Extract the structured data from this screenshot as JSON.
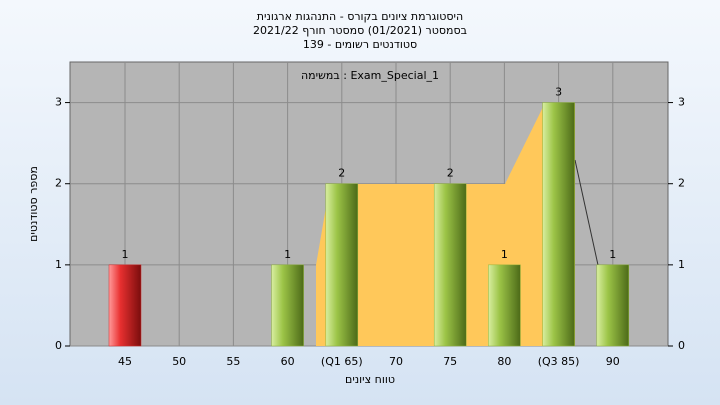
{
  "chart_data": {
    "type": "bar",
    "title": [
      "היסטוגרמת ציונים בקורס - התנהגות ארגונית",
      "בסמסטר  (01/2021)  סמסטר חורף 2021/22",
      "סטודנטים רשומים - 139"
    ],
    "annotation": "במשימה : Exam_Special_1",
    "x_label": "טווח ציונים",
    "y_label": "מספר סטודנטים",
    "categories": [
      "45",
      "50",
      "55",
      "60",
      "(Q1 65)",
      "70",
      "75",
      "80",
      "(Q3 85)",
      "90"
    ],
    "values": [
      1,
      0,
      0,
      1,
      2,
      0,
      2,
      1,
      3,
      1
    ],
    "colors": [
      "#d42a2a",
      "#8fb43a",
      "#8fb43a",
      "#8fb43a",
      "#8fb43a",
      "#8fb43a",
      "#8fb43a",
      "#8fb43a",
      "#8fb43a",
      "#8fb43a"
    ],
    "ylim": [
      0,
      3.5
    ],
    "yticks": [
      0,
      1,
      2,
      3
    ],
    "grid": true
  }
}
